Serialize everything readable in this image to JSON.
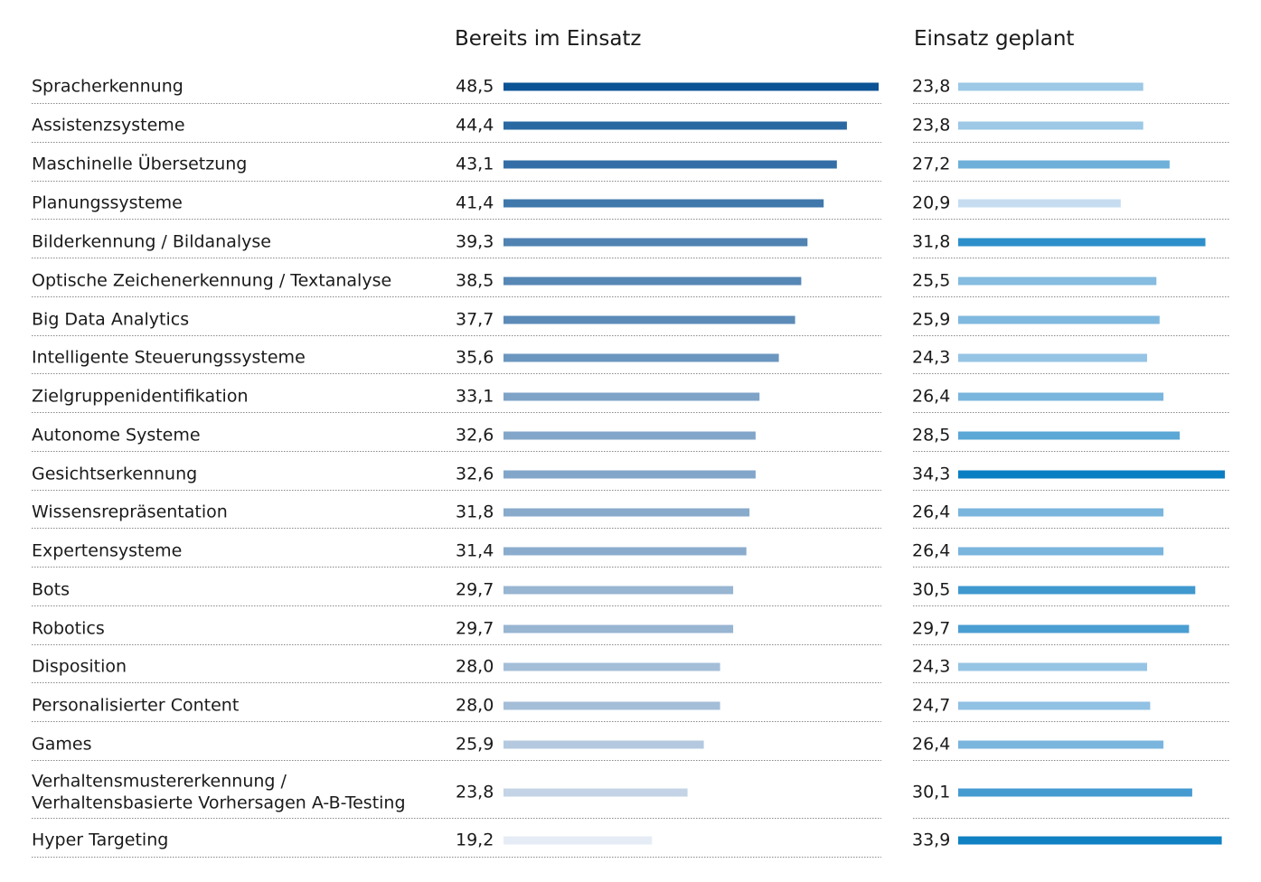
{
  "chart_data": {
    "type": "bar",
    "series": [
      {
        "name": "Bereits im Einsatz",
        "values": [
          48.5,
          44.4,
          43.1,
          41.4,
          39.3,
          38.5,
          37.7,
          35.6,
          33.1,
          32.6,
          32.6,
          31.8,
          31.4,
          29.7,
          29.7,
          28.0,
          28.0,
          25.9,
          23.8,
          19.2
        ],
        "value_labels": [
          "48,5",
          "44,4",
          "43,1",
          "41,4",
          "39,3",
          "38,5",
          "37,7",
          "35,6",
          "33,1",
          "32,6",
          "32,6",
          "31,8",
          "31,4",
          "29,7",
          "29,7",
          "28,0",
          "28,0",
          "25,9",
          "23,8",
          "19,2"
        ]
      },
      {
        "name": "Einsatz geplant",
        "values": [
          23.8,
          23.8,
          27.2,
          20.9,
          31.8,
          25.5,
          25.9,
          24.3,
          26.4,
          28.5,
          34.3,
          26.4,
          26.4,
          30.5,
          29.7,
          24.3,
          24.7,
          26.4,
          30.1,
          33.9
        ],
        "value_labels": [
          "23,8",
          "23,8",
          "27,2",
          "20,9",
          "31,8",
          "25,5",
          "25,9",
          "24,3",
          "26,4",
          "28,5",
          "34,3",
          "26,4",
          "26,4",
          "30,5",
          "29,7",
          "24,3",
          "24,7",
          "26,4",
          "30,1",
          "33,9"
        ]
      }
    ],
    "categories": [
      [
        "Spracherkennung"
      ],
      [
        "Assistenzsysteme"
      ],
      [
        "Maschinelle Übersetzung"
      ],
      [
        "Planungssysteme"
      ],
      [
        "Bilderkennung / Bildanalyse"
      ],
      [
        "Optische Zeichenerkennung / Textanalyse"
      ],
      [
        "Big Data Analytics"
      ],
      [
        "Intelligente Steuerungssysteme"
      ],
      [
        "Zielgruppenidentifikation"
      ],
      [
        "Autonome Systeme"
      ],
      [
        "Gesichtserkennung"
      ],
      [
        "Wissensrepräsentation"
      ],
      [
        "Expertensysteme"
      ],
      [
        "Bots"
      ],
      [
        "Robotics"
      ],
      [
        "Disposition"
      ],
      [
        "Personalisierter Content"
      ],
      [
        "Games"
      ],
      [
        "Verhaltensmustererkennung /",
        "Verhaltensbasierte Vorhersagen A-B-Testing"
      ],
      [
        "Hyper Targeting"
      ]
    ],
    "grid": false,
    "row_separators": "dotted",
    "colors": {
      "left_dark": "#0b5394",
      "left_light": "#e6ecf5",
      "right_light": "#c6dcf0",
      "right_dark": "#0a7ec2",
      "text": "#1a1a1a",
      "separator": "#8a8a8a"
    }
  }
}
